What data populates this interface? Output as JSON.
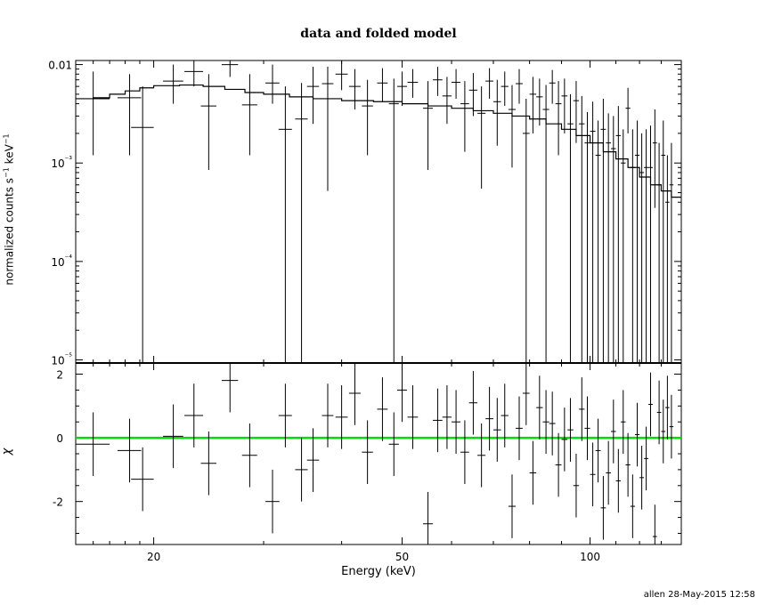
{
  "title": "data and folded model",
  "footer": "allen 28-May-2015 12:58",
  "chart_data": [
    {
      "panel": "top",
      "type": "scatter",
      "title": "data and folded model",
      "xlabel": "Energy (keV)",
      "ylabel": "normalized counts s⁻¹ keV⁻¹",
      "xscale": "log",
      "yscale": "log",
      "xlim": [
        15,
        140
      ],
      "ylim": [
        9.3e-06,
        0.011
      ],
      "ytick_labels": [
        "0.01",
        "10⁻³",
        "10⁻⁴",
        "10⁻⁵"
      ],
      "ytick_values": [
        0.01,
        0.001,
        0.0001,
        1e-05
      ],
      "data": {
        "x": [
          16.0,
          18.3,
          19.2,
          21.5,
          23.2,
          24.5,
          26.5,
          28.5,
          31.0,
          32.5,
          34.5,
          36.0,
          38.0,
          40.0,
          42.0,
          44.0,
          46.5,
          48.5,
          50.0,
          52.0,
          55.0,
          57.0,
          59.0,
          61.0,
          63.0,
          65.0,
          67.0,
          69.0,
          71.0,
          73.0,
          75.0,
          77.0,
          79.0,
          81.0,
          83.0,
          85.0,
          87.0,
          89.0,
          91.0,
          93.0,
          95.0,
          97.0,
          99.0,
          101.0,
          103.0,
          105.0,
          107.0,
          109.0,
          111.0,
          113.0,
          115.0,
          117.0,
          119.0,
          121.0,
          123.0,
          125.0,
          127.0,
          129.0,
          131.0,
          133.0,
          135.0
        ],
        "xerr": [
          1.0,
          0.8,
          0.8,
          0.8,
          0.8,
          0.7,
          0.8,
          0.8,
          0.8,
          0.8,
          0.8,
          0.8,
          0.8,
          0.9,
          0.9,
          0.9,
          0.9,
          0.9,
          0.9,
          1.0,
          1.0,
          1.0,
          1.0,
          1.0,
          1.0,
          1.0,
          1.0,
          1.0,
          1.0,
          1.0,
          1.0,
          1.0,
          1.0,
          1.0,
          1.0,
          1.0,
          1.0,
          1.0,
          1.0,
          1.0,
          1.0,
          1.0,
          1.0,
          1.0,
          1.0,
          1.0,
          1.0,
          1.0,
          1.0,
          1.0,
          1.0,
          1.0,
          1.0,
          1.0,
          1.0,
          1.0,
          1.0,
          1.0,
          1.0,
          1.0,
          1.0
        ],
        "y": [
          0.0045,
          0.0046,
          0.0023,
          0.0068,
          0.0085,
          0.0038,
          0.01,
          0.0039,
          0.0065,
          0.0022,
          0.0028,
          0.006,
          0.0064,
          0.008,
          0.006,
          0.0038,
          0.0065,
          0.004,
          0.006,
          0.0066,
          0.0036,
          0.007,
          0.0048,
          0.0066,
          0.004,
          0.0055,
          0.0032,
          0.0068,
          0.0042,
          0.006,
          0.0035,
          0.0064,
          0.002,
          0.005,
          0.0047,
          0.0035,
          0.0065,
          0.004,
          0.0048,
          0.0025,
          0.0043,
          0.0025,
          0.0016,
          0.0021,
          0.0012,
          0.0022,
          0.0016,
          0.0014,
          0.0019,
          0.001,
          0.0036,
          0.0009,
          0.0012,
          0.0008,
          0.0009,
          0.0009,
          0.0016,
          0.0006,
          0.0012,
          0.0004,
          0.0006
        ],
        "ylo": [
          0.0012,
          0.0012,
          9.3e-06,
          0.004,
          0.006,
          0.00085,
          0.0075,
          0.0012,
          0.004,
          9.3e-06,
          9.3e-06,
          0.0025,
          0.00052,
          0.0055,
          0.0035,
          0.0012,
          0.0042,
          9.3e-06,
          0.0038,
          0.0046,
          0.00085,
          0.0048,
          0.0025,
          0.0045,
          0.0013,
          0.003,
          0.00055,
          0.0045,
          0.0015,
          0.0038,
          0.0009,
          0.004,
          9.3e-06,
          0.002,
          0.0024,
          9.3e-06,
          0.004,
          0.0012,
          0.002,
          9.3e-06,
          0.0016,
          9.3e-06,
          9.3e-06,
          9.3e-06,
          9.3e-06,
          9.3e-06,
          9.3e-06,
          9.3e-06,
          9.3e-06,
          9.3e-06,
          0.002,
          9.3e-06,
          9.3e-06,
          9.3e-06,
          9.3e-06,
          9.3e-06,
          0.00035,
          9.3e-06,
          9.3e-06,
          9.3e-06,
          9.3e-06
        ],
        "yhi": [
          0.0085,
          0.008,
          0.006,
          0.01,
          0.011,
          0.008,
          0.011,
          0.008,
          0.01,
          0.006,
          0.0065,
          0.0095,
          0.0095,
          0.011,
          0.009,
          0.007,
          0.0092,
          0.0072,
          0.0085,
          0.009,
          0.0068,
          0.0095,
          0.0075,
          0.009,
          0.0068,
          0.0082,
          0.006,
          0.0092,
          0.007,
          0.0085,
          0.0062,
          0.009,
          0.0045,
          0.0075,
          0.0072,
          0.0062,
          0.0088,
          0.0068,
          0.0072,
          0.005,
          0.0068,
          0.0048,
          0.0033,
          0.0042,
          0.0027,
          0.0045,
          0.0032,
          0.003,
          0.0038,
          0.0022,
          0.0058,
          0.0022,
          0.0027,
          0.002,
          0.0022,
          0.0024,
          0.0035,
          0.0016,
          0.0027,
          0.0012,
          0.0016
        ]
      },
      "model": {
        "x": [
          15.0,
          16.0,
          17.0,
          18.0,
          19.0,
          20.0,
          22.0,
          24.0,
          26.0,
          28.0,
          30.0,
          33.0,
          36.0,
          40.0,
          45.0,
          50.0,
          55.0,
          60.0,
          65.0,
          70.0,
          75.0,
          80.0,
          85.0,
          90.0,
          95.0,
          100.0,
          105.0,
          110.0,
          115.0,
          120.0,
          125.0,
          130.0,
          135.0,
          140.0
        ],
        "y": [
          0.0045,
          0.0046,
          0.005,
          0.0054,
          0.0058,
          0.0061,
          0.0062,
          0.006,
          0.0056,
          0.0052,
          0.005,
          0.0047,
          0.0045,
          0.0043,
          0.0042,
          0.004,
          0.0038,
          0.0036,
          0.0034,
          0.0032,
          0.003,
          0.0028,
          0.0025,
          0.0022,
          0.0019,
          0.0016,
          0.0013,
          0.0011,
          0.0009,
          0.00072,
          0.0006,
          0.00052,
          0.00045,
          0.0004
        ]
      }
    },
    {
      "panel": "bottom",
      "type": "scatter",
      "xlabel": "Energy (keV)",
      "ylabel": "χ",
      "xscale": "log",
      "xlim": [
        15,
        140
      ],
      "ylim": [
        -3.35,
        2.35
      ],
      "xtick_labels": [
        "20",
        "50",
        "100"
      ],
      "xtick_values": [
        20,
        50,
        100
      ],
      "ytick_labels": [
        "2",
        "0",
        "-2"
      ],
      "ytick_values": [
        2,
        0,
        -2
      ],
      "zero_line_color": "#00dd00",
      "data": {
        "x": [
          16.0,
          18.3,
          19.2,
          21.5,
          23.2,
          24.5,
          26.5,
          28.5,
          31.0,
          32.5,
          34.5,
          36.0,
          38.0,
          40.0,
          42.0,
          44.0,
          46.5,
          48.5,
          50.0,
          52.0,
          55.0,
          57.0,
          59.0,
          61.0,
          63.0,
          65.0,
          67.0,
          69.0,
          71.0,
          73.0,
          75.0,
          77.0,
          79.0,
          81.0,
          83.0,
          85.0,
          87.0,
          89.0,
          91.0,
          93.0,
          95.0,
          97.0,
          99.0,
          101.0,
          103.0,
          105.0,
          107.0,
          109.0,
          111.0,
          113.0,
          115.0,
          117.0,
          119.0,
          121.0,
          123.0,
          125.0,
          127.0,
          129.0,
          131.0,
          133.0,
          135.0
        ],
        "xerr": [
          1.0,
          0.8,
          0.8,
          0.8,
          0.8,
          0.7,
          0.8,
          0.8,
          0.8,
          0.8,
          0.8,
          0.8,
          0.8,
          0.9,
          0.9,
          0.9,
          0.9,
          0.9,
          0.9,
          1.0,
          1.0,
          1.0,
          1.0,
          1.0,
          1.0,
          1.0,
          1.0,
          1.0,
          1.0,
          1.0,
          1.0,
          1.0,
          1.0,
          1.0,
          1.0,
          1.0,
          1.0,
          1.0,
          1.0,
          1.0,
          1.0,
          1.0,
          1.0,
          1.0,
          1.0,
          1.0,
          1.0,
          1.0,
          1.0,
          1.0,
          1.0,
          1.0,
          1.0,
          1.0,
          1.0,
          1.0,
          1.0,
          1.0,
          1.0,
          1.0,
          1.0
        ],
        "y": [
          -0.2,
          -0.4,
          -1.3,
          0.05,
          0.7,
          -0.8,
          1.8,
          -0.55,
          -2.0,
          0.7,
          -1.0,
          -0.7,
          0.7,
          0.65,
          1.4,
          -0.45,
          0.9,
          -0.2,
          1.5,
          0.65,
          -2.7,
          0.55,
          0.65,
          0.5,
          -0.45,
          1.1,
          -0.55,
          0.6,
          0.25,
          0.7,
          -2.15,
          0.3,
          1.4,
          -1.1,
          0.95,
          0.5,
          0.45,
          -0.85,
          -0.05,
          0.25,
          -1.5,
          0.9,
          0.3,
          -1.15,
          -0.4,
          -2.2,
          -1.1,
          0.2,
          -1.35,
          0.5,
          -0.85,
          -2.15,
          0.1,
          -1.25,
          -0.65,
          1.05,
          -3.1,
          0.8,
          0.2,
          0.95,
          0.35
        ],
        "yerr": [
          1.0,
          1.0,
          1.0,
          1.0,
          1.0,
          1.0,
          1.0,
          1.0,
          1.0,
          1.0,
          1.0,
          1.0,
          1.0,
          1.0,
          1.0,
          1.0,
          1.0,
          1.0,
          1.0,
          1.0,
          1.0,
          1.0,
          1.0,
          1.0,
          1.0,
          1.0,
          1.0,
          1.0,
          1.0,
          1.0,
          1.0,
          1.0,
          1.0,
          1.0,
          1.0,
          1.0,
          1.0,
          1.0,
          1.0,
          1.0,
          1.0,
          1.0,
          1.0,
          1.0,
          1.0,
          1.0,
          1.0,
          1.0,
          1.0,
          1.0,
          1.0,
          1.0,
          1.0,
          1.0,
          1.0,
          1.0,
          1.0,
          1.0,
          1.0,
          1.0,
          1.0
        ]
      }
    }
  ]
}
